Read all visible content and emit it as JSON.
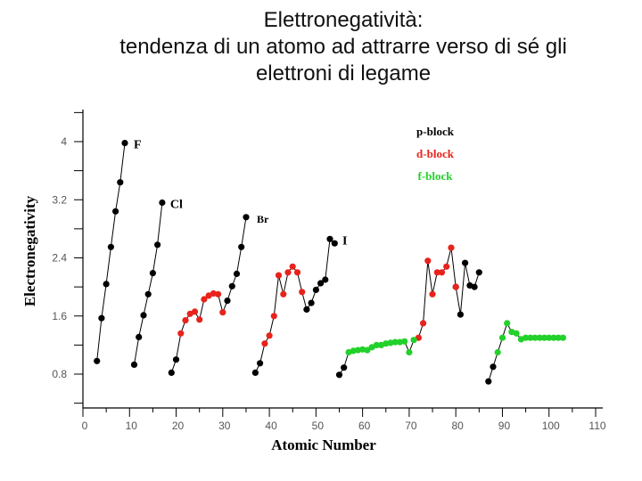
{
  "title_lines": [
    "Elettronegatività:",
    "tendenza di un atomo ad attrarre verso di sé gli",
    "elettroni di legame"
  ],
  "chart_data": {
    "type": "scatter",
    "title": "Elettronegatività: tendenza di un atomo ad attrarre verso di sé gli elettroni di legame",
    "xlabel": "Atomic Number",
    "ylabel": "Electronegativity",
    "xlim": [
      0,
      110
    ],
    "ylim": [
      0.4,
      4.4
    ],
    "xticks": [
      0,
      10,
      20,
      30,
      40,
      50,
      60,
      70,
      80,
      90,
      100,
      110
    ],
    "yticks": [
      0.8,
      1.6,
      2.4,
      3.2,
      4
    ],
    "ytick_labels": [
      "0.8",
      "1.6",
      "2.4",
      "3.2",
      "4"
    ],
    "legend": {
      "position": "top-right",
      "entries": [
        {
          "name": "p-block",
          "color": "#000000"
        },
        {
          "name": "d-block",
          "color": "#e8231c"
        },
        {
          "name": "f-block",
          "color": "#22d12a"
        }
      ]
    },
    "annotations": [
      {
        "text": "F",
        "x": 9,
        "y": 3.98
      },
      {
        "text": "Cl",
        "x": 17,
        "y": 3.16
      },
      {
        "text": "Br",
        "x": 35,
        "y": 2.96
      },
      {
        "text": "I",
        "x": 53,
        "y": 2.66
      }
    ],
    "series": [
      {
        "name": "p-block",
        "color": "#000000",
        "points": [
          [
            3,
            0.98
          ],
          [
            4,
            1.57
          ],
          [
            5,
            2.04
          ],
          [
            6,
            2.55
          ],
          [
            7,
            3.04
          ],
          [
            8,
            3.44
          ],
          [
            9,
            3.98
          ],
          [
            11,
            0.93
          ],
          [
            12,
            1.31
          ],
          [
            13,
            1.61
          ],
          [
            14,
            1.9
          ],
          [
            15,
            2.19
          ],
          [
            16,
            2.58
          ],
          [
            17,
            3.16
          ],
          [
            19,
            0.82
          ],
          [
            20,
            1.0
          ],
          [
            31,
            1.81
          ],
          [
            32,
            2.01
          ],
          [
            33,
            2.18
          ],
          [
            34,
            2.55
          ],
          [
            35,
            2.96
          ],
          [
            37,
            0.82
          ],
          [
            38,
            0.95
          ],
          [
            48,
            1.69
          ],
          [
            49,
            1.78
          ],
          [
            50,
            1.96
          ],
          [
            51,
            2.05
          ],
          [
            52,
            2.1
          ],
          [
            53,
            2.66
          ],
          [
            54,
            2.6
          ],
          [
            55,
            0.79
          ],
          [
            56,
            0.89
          ],
          [
            80,
            2.0
          ],
          [
            81,
            1.62
          ],
          [
            82,
            2.33
          ],
          [
            83,
            2.02
          ],
          [
            84,
            2.0
          ],
          [
            85,
            2.2
          ],
          [
            87,
            0.7
          ],
          [
            88,
            0.9
          ]
        ]
      },
      {
        "name": "d-block",
        "color": "#e8231c",
        "points": [
          [
            21,
            1.36
          ],
          [
            22,
            1.54
          ],
          [
            23,
            1.63
          ],
          [
            24,
            1.66
          ],
          [
            25,
            1.55
          ],
          [
            26,
            1.83
          ],
          [
            27,
            1.88
          ],
          [
            28,
            1.91
          ],
          [
            29,
            1.9
          ],
          [
            30,
            1.65
          ],
          [
            39,
            1.22
          ],
          [
            40,
            1.33
          ],
          [
            41,
            1.6
          ],
          [
            42,
            2.16
          ],
          [
            43,
            1.9
          ],
          [
            44,
            2.2
          ],
          [
            45,
            2.28
          ],
          [
            46,
            2.2
          ],
          [
            47,
            1.93
          ],
          [
            72,
            1.3
          ],
          [
            73,
            1.5
          ],
          [
            74,
            2.36
          ],
          [
            75,
            1.9
          ],
          [
            76,
            2.2
          ],
          [
            77,
            2.2
          ],
          [
            78,
            2.28
          ],
          [
            79,
            2.54
          ],
          [
            80,
            2.0
          ]
        ]
      },
      {
        "name": "f-block",
        "color": "#22d12a",
        "points": [
          [
            57,
            1.1
          ],
          [
            58,
            1.12
          ],
          [
            59,
            1.13
          ],
          [
            60,
            1.14
          ],
          [
            61,
            1.13
          ],
          [
            62,
            1.17
          ],
          [
            63,
            1.2
          ],
          [
            64,
            1.2
          ],
          [
            65,
            1.22
          ],
          [
            66,
            1.23
          ],
          [
            67,
            1.24
          ],
          [
            68,
            1.24
          ],
          [
            69,
            1.25
          ],
          [
            70,
            1.1
          ],
          [
            71,
            1.27
          ],
          [
            89,
            1.1
          ],
          [
            90,
            1.3
          ],
          [
            91,
            1.5
          ],
          [
            92,
            1.38
          ],
          [
            93,
            1.36
          ],
          [
            94,
            1.28
          ],
          [
            95,
            1.3
          ],
          [
            96,
            1.3
          ],
          [
            97,
            1.3
          ],
          [
            98,
            1.3
          ],
          [
            99,
            1.3
          ],
          [
            100,
            1.3
          ],
          [
            101,
            1.3
          ],
          [
            102,
            1.3
          ],
          [
            103,
            1.3
          ]
        ]
      }
    ],
    "connections": [
      [
        3,
        4,
        5,
        6,
        7,
        8,
        9
      ],
      [
        11,
        12,
        13,
        14,
        15,
        16,
        17
      ],
      [
        19,
        20,
        21,
        22,
        23,
        24,
        25,
        26,
        27,
        28,
        29,
        30,
        31,
        32,
        33,
        34,
        35
      ],
      [
        37,
        38,
        39,
        40,
        41,
        42,
        43,
        44,
        45,
        46,
        47,
        48,
        49,
        50,
        51,
        52,
        53,
        54
      ],
      [
        55,
        56,
        57,
        58,
        59,
        60,
        61,
        62,
        63,
        64,
        65,
        66,
        67,
        68,
        69,
        70,
        71,
        72,
        73,
        74,
        75,
        76,
        77,
        78,
        79,
        80,
        81,
        82,
        83,
        84,
        85
      ],
      [
        87,
        88,
        89,
        90,
        91,
        92,
        93,
        94,
        95,
        96,
        97,
        98,
        99,
        100,
        101,
        102,
        103
      ]
    ]
  }
}
